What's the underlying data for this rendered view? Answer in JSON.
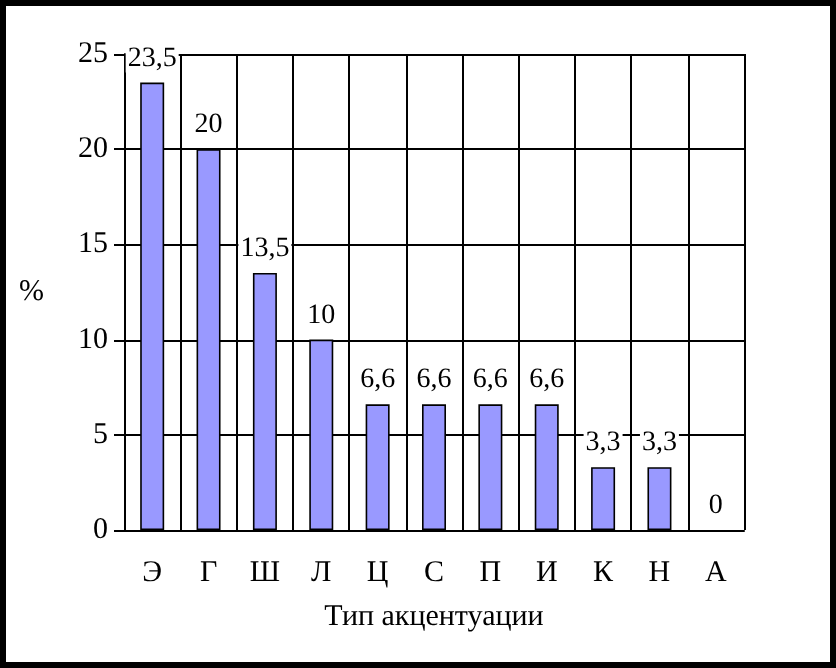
{
  "chart_data": {
    "type": "bar",
    "xlabel": "Тип акцентуации",
    "ylabel": "%",
    "categories": [
      "Э",
      "Г",
      "Ш",
      "Л",
      "Ц",
      "С",
      "П",
      "И",
      "К",
      "Н",
      "А"
    ],
    "values": [
      23.5,
      20,
      13.5,
      10,
      6.6,
      6.6,
      6.6,
      6.6,
      3.3,
      3.3,
      0
    ],
    "value_labels": [
      "23,5",
      "20",
      "13,5",
      "10",
      "6,6",
      "6,6",
      "6,6",
      "6,6",
      "3,3",
      "3,3",
      "0"
    ],
    "color": "#9999ff",
    "ylim": [
      0,
      25
    ],
    "yticks": [
      0,
      5,
      10,
      15,
      20,
      25
    ],
    "grid": true
  }
}
